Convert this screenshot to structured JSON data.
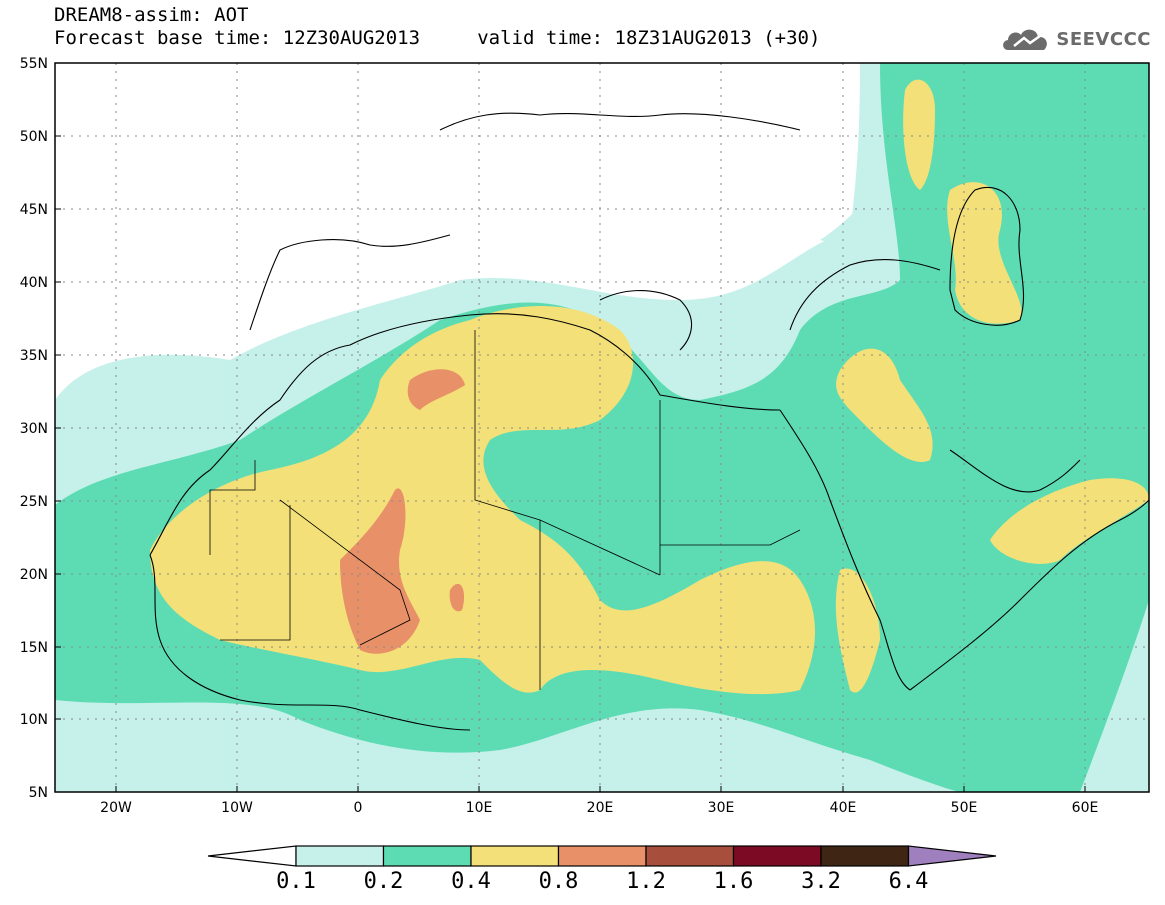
{
  "header": {
    "line1": "DREAM8-assim: AOT",
    "line2": "Forecast base time: 12Z30AUG2013     valid time: 18Z31AUG2013 (+30)"
  },
  "logo": {
    "text": "SEEVCCC",
    "icon": "cloud-icon",
    "color": "#6b6b6b"
  },
  "map": {
    "projection": "lat-lon",
    "lon_range": [
      -25,
      65
    ],
    "lat_range": [
      5,
      55
    ],
    "lat_labels": [
      "55N",
      "50N",
      "45N",
      "40N",
      "35N",
      "30N",
      "25N",
      "20N",
      "15N",
      "10N",
      "5N"
    ],
    "lon_labels": [
      "20W",
      "10W",
      "0",
      "10E",
      "20E",
      "30E",
      "40E",
      "50E",
      "60E"
    ],
    "grid": "dotted"
  },
  "colorbar": {
    "levels": [
      "0.1",
      "0.2",
      "0.4",
      "0.8",
      "1.2",
      "1.6",
      "3.2",
      "6.4"
    ],
    "colors": [
      "#c6f1ea",
      "#5ddcb4",
      "#f3e078",
      "#e89068",
      "#a84e3c",
      "#7c0a24",
      "#3f2614",
      "#9f7fbe"
    ],
    "under_color": "#ffffff"
  }
}
